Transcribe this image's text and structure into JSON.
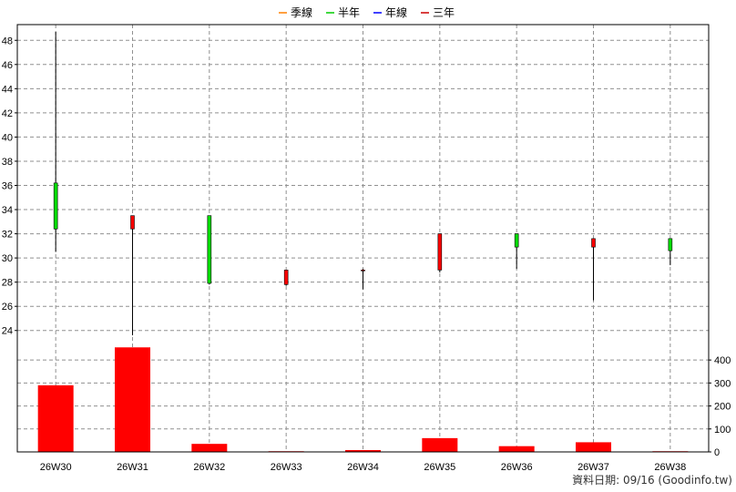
{
  "legend": [
    {
      "label": "季線",
      "color": "#ff8000"
    },
    {
      "label": "半年",
      "color": "#00cc00"
    },
    {
      "label": "年線",
      "color": "#0000ff"
    },
    {
      "label": "三年",
      "color": "#cc0000"
    }
  ],
  "footer": "資料日期: 09/16  (Goodinfo.tw)",
  "chart_data": {
    "type": "candlestick",
    "categories": [
      "26W30",
      "26W31",
      "26W32",
      "26W33",
      "26W34",
      "26W35",
      "26W36",
      "26W37",
      "26W38"
    ],
    "price": {
      "ylim": [
        22.7,
        49.3
      ],
      "ticks": [
        24,
        26,
        28,
        30,
        32,
        34,
        36,
        38,
        40,
        42,
        44,
        46,
        48
      ],
      "candles": [
        {
          "open": 36.2,
          "close": 32.4,
          "high": 48.7,
          "low": 30.5
        },
        {
          "open": 32.4,
          "close": 33.5,
          "high": 33.5,
          "low": 23.6
        },
        {
          "open": 33.5,
          "close": 27.9,
          "high": 33.5,
          "low": 27.8
        },
        {
          "open": 27.8,
          "close": 29.0,
          "high": 29.0,
          "low": 27.7
        },
        {
          "open": 29.0,
          "close": 29.0,
          "high": 29.1,
          "low": 27.4
        },
        {
          "open": 29.0,
          "close": 32.0,
          "high": 32.0,
          "low": 28.8
        },
        {
          "open": 32.0,
          "close": 30.9,
          "high": 32.0,
          "low": 29.1
        },
        {
          "open": 30.9,
          "close": 31.6,
          "high": 31.6,
          "low": 26.5
        },
        {
          "open": 31.6,
          "close": 30.6,
          "high": 31.6,
          "low": 29.4
        }
      ],
      "up_color": "#ff0000",
      "down_color": "#00dd00"
    },
    "volume": {
      "ylim": [
        0,
        460
      ],
      "ticks": [
        0,
        100,
        200,
        300,
        400
      ],
      "values": [
        290,
        455,
        35,
        3,
        8,
        60,
        25,
        42,
        3
      ],
      "color": "#ff0000"
    },
    "grid": true
  }
}
